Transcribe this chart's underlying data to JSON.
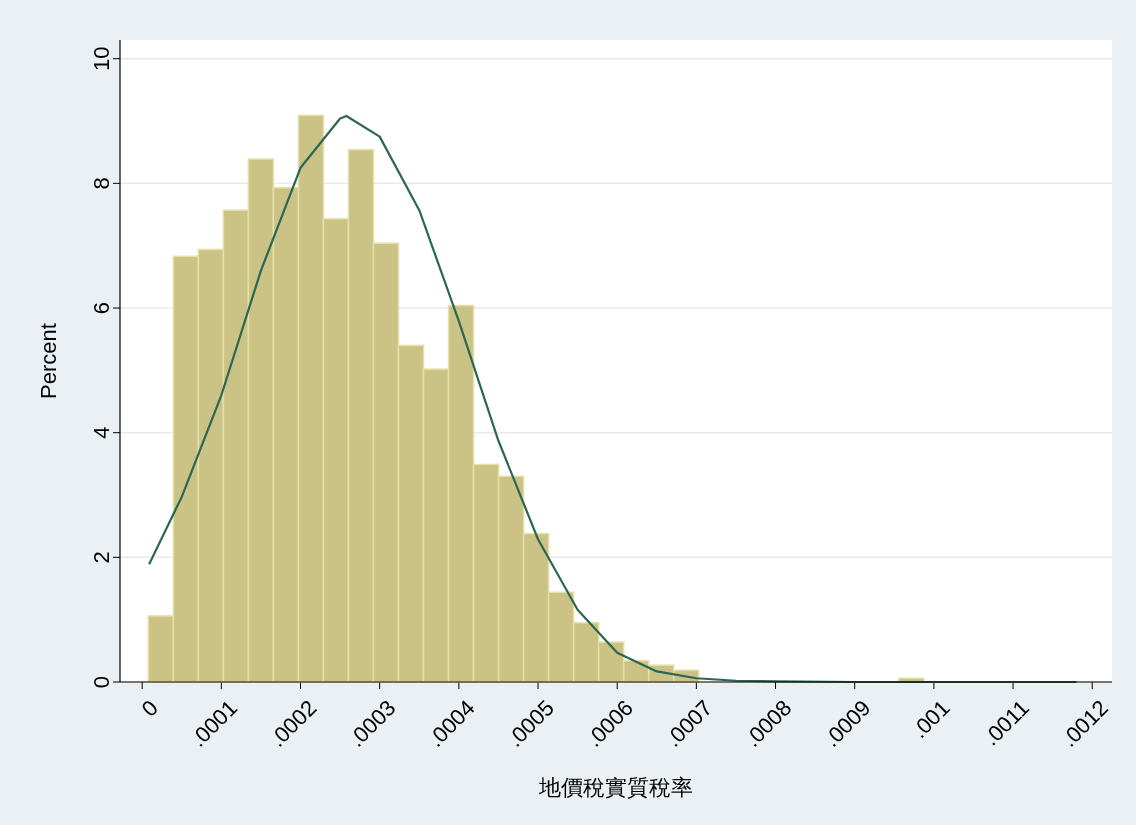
{
  "chart_data": {
    "type": "histogram",
    "xlabel": "地價稅實質稅率",
    "ylabel": "Percent",
    "bins": [
      7.8e-06,
      3.94e-05,
      7.1e-05,
      0.0001026,
      0.0001342,
      0.0001658,
      0.0001974,
      0.000229,
      0.0002606,
      0.0002922,
      0.0003238,
      0.0003554,
      0.000387,
      0.0004186,
      0.0004502,
      0.0004818,
      0.0005134,
      0.000545,
      0.0005766,
      0.0006082,
      0.0006398,
      0.0006714,
      0.000703,
      0.0007346,
      0.0007662,
      0.0007978,
      0.0008294,
      0.000861,
      0.0008926,
      0.0009242,
      0.0009558,
      0.0009874,
      0.001019,
      0.0010506,
      0.0010822,
      0.0011138,
      0.0011454,
      0.001177
    ],
    "values": [
      1.06,
      6.83,
      6.94,
      7.57,
      8.39,
      7.93,
      9.09,
      7.43,
      8.54,
      7.04,
      5.4,
      5.02,
      6.04,
      3.49,
      3.3,
      2.38,
      1.44,
      0.95,
      0.64,
      0.34,
      0.27,
      0.19,
      null,
      null,
      null,
      null,
      null,
      null,
      null,
      null,
      0.06,
      null,
      null,
      null,
      null,
      null,
      null
    ],
    "color": "#cbc285",
    "series": [
      {
        "type": "line",
        "color": "#2b6753",
        "x": [
          8.8e-06,
          5e-05,
          0.0001,
          0.00015,
          0.0002,
          0.00025,
          0.000258,
          0.0003,
          0.00035,
          0.0004,
          0.00045,
          0.0005,
          0.00055,
          0.0006,
          0.00065,
          0.0007,
          0.00075,
          0.0008,
          0.0009,
          0.001,
          0.00118
        ],
        "values": [
          1.89,
          2.97,
          4.6,
          6.6,
          8.25,
          9.04,
          9.08,
          8.75,
          7.57,
          5.79,
          3.87,
          2.29,
          1.16,
          0.47,
          0.17,
          0.06,
          0.02,
          0.01,
          0,
          0,
          0
        ]
      }
    ],
    "xlim": [
      -2.8e-05,
      0.001225
    ],
    "ylim": [
      0,
      10.3
    ],
    "xticks": [
      0,
      {
        "value": 0.0001,
        "label": ".0001"
      },
      {
        "value": 0.0002,
        "label": ".0002"
      },
      {
        "value": 0.0003,
        "label": ".0003"
      },
      {
        "value": 0.0004,
        "label": ".0004"
      },
      {
        "value": 0.0005,
        "label": ".0005"
      },
      {
        "value": 0.0006,
        "label": ".0006"
      },
      {
        "value": 0.0007,
        "label": ".0007"
      },
      {
        "value": 0.0008,
        "label": ".0008"
      },
      {
        "value": 0.0009,
        "label": ".0009"
      },
      {
        "value": 0.001,
        "label": ".001"
      },
      {
        "value": 0.0011,
        "label": ".0011"
      },
      {
        "value": 0.0012,
        "label": ".0012"
      }
    ],
    "yticks": [
      0,
      2,
      4,
      6,
      8,
      10
    ],
    "grid": "y"
  }
}
